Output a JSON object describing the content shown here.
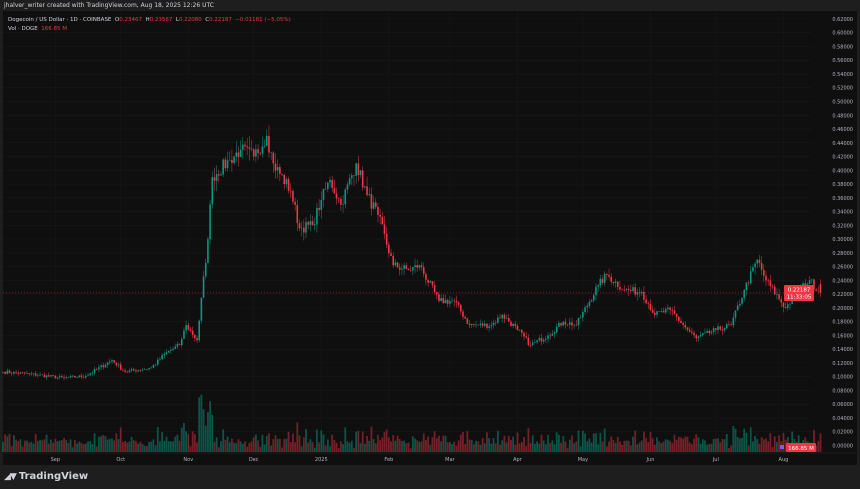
{
  "credit": "jhalver_writer created with TradingView.com, Aug 18, 2025 12:26 UTC",
  "legend": {
    "symbol": "Dogecoin / US Dollar · 1D · COINBASE",
    "open_label": "O",
    "open": "0.23467",
    "high_label": "H",
    "high": "0.23567",
    "low_label": "L",
    "low": "0.22080",
    "close_label": "C",
    "close": "0.22187",
    "change": "−0.01181 (−5.05%)",
    "volume_label": "Vol · DOGE",
    "volume": "166.85 M"
  },
  "last_price_badge": {
    "price": "0.22187",
    "countdown": "11:33:05"
  },
  "volume_badge": "166.85 M",
  "branding": "TradingView",
  "colors": {
    "up": "#089981",
    "down": "#f23645",
    "background": "#0f0f0f",
    "page": "#1e1e1e"
  },
  "chart_data": {
    "type": "candlestick",
    "interval": "1D",
    "y_ticks": [
      "0.62000",
      "0.60000",
      "0.58000",
      "0.56000",
      "0.54000",
      "0.52000",
      "0.50000",
      "0.48000",
      "0.46000",
      "0.44000",
      "0.42000",
      "0.40000",
      "0.38000",
      "0.36000",
      "0.34000",
      "0.32000",
      "0.30000",
      "0.28000",
      "0.26000",
      "0.24000",
      "0.22000",
      "0.20000",
      "0.18000",
      "0.16000",
      "0.14000",
      "0.12000",
      "0.10000",
      "0.08000",
      "0.06000",
      "0.04000",
      "0.02000",
      "0.00000"
    ],
    "ylim": [
      0,
      0.62
    ],
    "x_ticks": [
      {
        "label": "Sep",
        "date": "2024-09-01"
      },
      {
        "label": "Oct",
        "date": "2024-10-01"
      },
      {
        "label": "Nov",
        "date": "2024-11-01"
      },
      {
        "label": "Dec",
        "date": "2024-12-01"
      },
      {
        "label": "2025",
        "date": "2025-01-01"
      },
      {
        "label": "Feb",
        "date": "2025-02-01"
      },
      {
        "label": "Mar",
        "date": "2025-03-01"
      },
      {
        "label": "Apr",
        "date": "2025-04-01"
      },
      {
        "label": "May",
        "date": "2025-05-01"
      },
      {
        "label": "Jun",
        "date": "2025-06-01"
      },
      {
        "label": "Jul",
        "date": "2025-07-01"
      },
      {
        "label": "Aug",
        "date": "2025-08-01"
      }
    ],
    "xlim": [
      "2024-08-08",
      "2025-08-18"
    ],
    "approx_closes": [
      [
        "2024-08-08",
        0.107
      ],
      [
        "2024-08-20",
        0.104
      ],
      [
        "2024-09-05",
        0.098
      ],
      [
        "2024-09-15",
        0.101
      ],
      [
        "2024-09-27",
        0.124
      ],
      [
        "2024-10-03",
        0.107
      ],
      [
        "2024-10-15",
        0.113
      ],
      [
        "2024-10-22",
        0.135
      ],
      [
        "2024-10-28",
        0.146
      ],
      [
        "2024-10-31",
        0.175
      ],
      [
        "2024-11-05",
        0.153
      ],
      [
        "2024-11-10",
        0.3
      ],
      [
        "2024-11-12",
        0.39
      ],
      [
        "2024-11-20",
        0.415
      ],
      [
        "2024-11-25",
        0.43
      ],
      [
        "2024-12-01",
        0.42
      ],
      [
        "2024-12-07",
        0.45
      ],
      [
        "2024-12-10",
        0.41
      ],
      [
        "2024-12-18",
        0.37
      ],
      [
        "2024-12-22",
        0.316
      ],
      [
        "2024-12-28",
        0.32
      ],
      [
        "2025-01-01",
        0.357
      ],
      [
        "2025-01-05",
        0.386
      ],
      [
        "2025-01-10",
        0.35
      ],
      [
        "2025-01-17",
        0.41
      ],
      [
        "2025-01-22",
        0.364
      ],
      [
        "2025-01-27",
        0.335
      ],
      [
        "2025-02-03",
        0.262
      ],
      [
        "2025-02-10",
        0.255
      ],
      [
        "2025-02-15",
        0.262
      ],
      [
        "2025-02-24",
        0.21
      ],
      [
        "2025-03-03",
        0.21
      ],
      [
        "2025-03-10",
        0.175
      ],
      [
        "2025-03-20",
        0.175
      ],
      [
        "2025-03-25",
        0.19
      ],
      [
        "2025-04-01",
        0.168
      ],
      [
        "2025-04-07",
        0.146
      ],
      [
        "2025-04-15",
        0.16
      ],
      [
        "2025-04-22",
        0.18
      ],
      [
        "2025-04-28",
        0.175
      ],
      [
        "2025-05-08",
        0.233
      ],
      [
        "2025-05-12",
        0.248
      ],
      [
        "2025-05-20",
        0.226
      ],
      [
        "2025-05-28",
        0.223
      ],
      [
        "2025-06-03",
        0.19
      ],
      [
        "2025-06-10",
        0.197
      ],
      [
        "2025-06-18",
        0.168
      ],
      [
        "2025-06-22",
        0.156
      ],
      [
        "2025-07-01",
        0.168
      ],
      [
        "2025-07-08",
        0.175
      ],
      [
        "2025-07-14",
        0.226
      ],
      [
        "2025-07-20",
        0.27
      ],
      [
        "2025-07-24",
        0.24
      ],
      [
        "2025-08-02",
        0.2
      ],
      [
        "2025-08-08",
        0.226
      ],
      [
        "2025-08-13",
        0.24
      ],
      [
        "2025-08-18",
        0.22187
      ]
    ],
    "last_close": 0.22187
  }
}
